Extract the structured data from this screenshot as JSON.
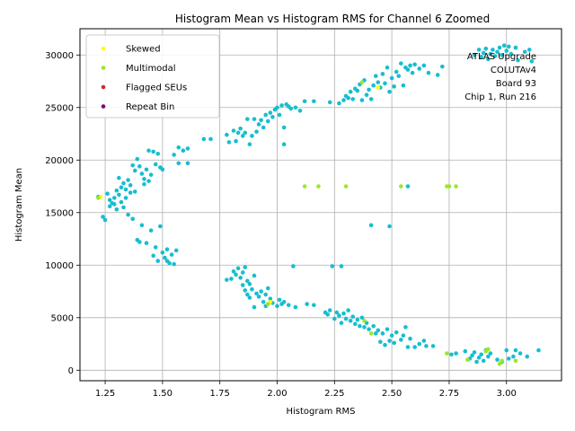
{
  "chart_data": {
    "type": "scatter",
    "title": "Histogram Mean vs Histogram RMS for Channel 6 Zoomed",
    "xlabel": "Histogram RMS",
    "ylabel": "Histogram Mean",
    "xlim": [
      1.14,
      3.24
    ],
    "ylim": [
      -1000,
      32500
    ],
    "xticks": [
      1.25,
      1.5,
      1.75,
      2.0,
      2.25,
      2.5,
      2.75,
      3.0
    ],
    "xtick_labels": [
      "1.25",
      "1.50",
      "1.75",
      "2.00",
      "2.25",
      "2.50",
      "2.75",
      "3.00"
    ],
    "yticks": [
      0,
      5000,
      10000,
      15000,
      20000,
      25000,
      30000
    ],
    "ytick_labels": [
      "0",
      "5000",
      "10000",
      "15000",
      "20000",
      "25000",
      "30000"
    ],
    "grid": true,
    "legend_position": "top-left",
    "annotation": [
      "ATLAS Upgrade",
      "COLUTAv4",
      "Board 93",
      "Chip 1, Run 216"
    ],
    "base_color": "#17becf",
    "base_points": [
      [
        1.22,
        16500
      ],
      [
        1.24,
        14600
      ],
      [
        1.25,
        14300
      ],
      [
        1.26,
        16800
      ],
      [
        1.27,
        16200
      ],
      [
        1.27,
        15600
      ],
      [
        1.28,
        15900
      ],
      [
        1.29,
        16400
      ],
      [
        1.29,
        15800
      ],
      [
        1.3,
        17100
      ],
      [
        1.3,
        15300
      ],
      [
        1.31,
        16700
      ],
      [
        1.31,
        18300
      ],
      [
        1.32,
        17400
      ],
      [
        1.32,
        16000
      ],
      [
        1.33,
        17800
      ],
      [
        1.33,
        15500
      ],
      [
        1.34,
        17200
      ],
      [
        1.34,
        16400
      ],
      [
        1.35,
        18100
      ],
      [
        1.35,
        14800
      ],
      [
        1.36,
        17600
      ],
      [
        1.36,
        16900
      ],
      [
        1.37,
        19500
      ],
      [
        1.37,
        14400
      ],
      [
        1.38,
        19000
      ],
      [
        1.38,
        17000
      ],
      [
        1.39,
        20100
      ],
      [
        1.39,
        12400
      ],
      [
        1.4,
        19400
      ],
      [
        1.4,
        12200
      ],
      [
        1.41,
        18700
      ],
      [
        1.41,
        13800
      ],
      [
        1.42,
        18200
      ],
      [
        1.42,
        17700
      ],
      [
        1.43,
        19100
      ],
      [
        1.43,
        12100
      ],
      [
        1.44,
        18000
      ],
      [
        1.44,
        20900
      ],
      [
        1.45,
        18600
      ],
      [
        1.45,
        13300
      ],
      [
        1.46,
        20800
      ],
      [
        1.46,
        10900
      ],
      [
        1.47,
        19600
      ],
      [
        1.47,
        11700
      ],
      [
        1.48,
        20600
      ],
      [
        1.48,
        10400
      ],
      [
        1.49,
        19300
      ],
      [
        1.49,
        13700
      ],
      [
        1.5,
        19100
      ],
      [
        1.5,
        11200
      ],
      [
        1.51,
        10700
      ],
      [
        1.52,
        10400
      ],
      [
        1.52,
        11500
      ],
      [
        1.53,
        10200
      ],
      [
        1.54,
        11000
      ],
      [
        1.55,
        10100
      ],
      [
        1.55,
        20500
      ],
      [
        1.56,
        11400
      ],
      [
        1.57,
        21200
      ],
      [
        1.57,
        19700
      ],
      [
        1.59,
        20900
      ],
      [
        1.61,
        21100
      ],
      [
        1.61,
        19700
      ],
      [
        1.68,
        22000
      ],
      [
        1.71,
        22000
      ],
      [
        1.78,
        22400
      ],
      [
        1.79,
        21700
      ],
      [
        1.81,
        22800
      ],
      [
        1.82,
        21800
      ],
      [
        1.83,
        22600
      ],
      [
        1.84,
        23000
      ],
      [
        1.85,
        22300
      ],
      [
        1.86,
        22600
      ],
      [
        1.87,
        23900
      ],
      [
        1.88,
        21500
      ],
      [
        1.89,
        22300
      ],
      [
        1.9,
        23900
      ],
      [
        1.91,
        22700
      ],
      [
        1.92,
        23400
      ],
      [
        1.93,
        23800
      ],
      [
        1.94,
        23100
      ],
      [
        1.95,
        24300
      ],
      [
        1.96,
        23700
      ],
      [
        1.97,
        24500
      ],
      [
        1.98,
        24100
      ],
      [
        1.99,
        24800
      ],
      [
        2.0,
        25000
      ],
      [
        2.01,
        24300
      ],
      [
        2.02,
        25200
      ],
      [
        2.03,
        21500
      ],
      [
        2.03,
        23100
      ],
      [
        2.04,
        25300
      ],
      [
        2.05,
        25100
      ],
      [
        2.06,
        24900
      ],
      [
        2.08,
        25000
      ],
      [
        2.1,
        24700
      ],
      [
        2.12,
        25600
      ],
      [
        2.16,
        25600
      ],
      [
        2.23,
        25500
      ],
      [
        2.27,
        25400
      ],
      [
        2.29,
        25700
      ],
      [
        2.3,
        26100
      ],
      [
        2.31,
        25900
      ],
      [
        2.32,
        26500
      ],
      [
        2.33,
        25800
      ],
      [
        2.34,
        26800
      ],
      [
        2.35,
        26600
      ],
      [
        2.36,
        27200
      ],
      [
        2.37,
        25700
      ],
      [
        2.38,
        27600
      ],
      [
        2.39,
        26200
      ],
      [
        2.4,
        26700
      ],
      [
        2.41,
        25800
      ],
      [
        2.42,
        27100
      ],
      [
        2.43,
        28000
      ],
      [
        2.44,
        27400
      ],
      [
        2.45,
        26900
      ],
      [
        2.46,
        28200
      ],
      [
        2.47,
        27300
      ],
      [
        2.48,
        28800
      ],
      [
        2.49,
        26500
      ],
      [
        2.5,
        27800
      ],
      [
        2.51,
        27000
      ],
      [
        2.52,
        28400
      ],
      [
        2.53,
        28000
      ],
      [
        2.54,
        29200
      ],
      [
        2.55,
        27100
      ],
      [
        2.56,
        28800
      ],
      [
        2.57,
        28600
      ],
      [
        2.58,
        29000
      ],
      [
        2.59,
        28300
      ],
      [
        2.6,
        29100
      ],
      [
        2.62,
        28700
      ],
      [
        2.64,
        29000
      ],
      [
        2.66,
        28300
      ],
      [
        2.7,
        28100
      ],
      [
        2.72,
        28900
      ],
      [
        2.86,
        30000
      ],
      [
        2.88,
        30500
      ],
      [
        2.89,
        29800
      ],
      [
        2.9,
        30200
      ],
      [
        2.91,
        30600
      ],
      [
        2.92,
        29600
      ],
      [
        2.93,
        30100
      ],
      [
        2.94,
        30500
      ],
      [
        2.95,
        29900
      ],
      [
        2.96,
        30300
      ],
      [
        2.97,
        30700
      ],
      [
        2.98,
        30000
      ],
      [
        2.99,
        30900
      ],
      [
        3.0,
        30400
      ],
      [
        3.01,
        30800
      ],
      [
        3.02,
        30100
      ],
      [
        3.04,
        30700
      ],
      [
        3.05,
        29500
      ],
      [
        3.08,
        30300
      ],
      [
        3.1,
        30500
      ],
      [
        3.11,
        29400
      ],
      [
        1.78,
        8600
      ],
      [
        1.8,
        8700
      ],
      [
        1.81,
        9400
      ],
      [
        1.82,
        9100
      ],
      [
        1.83,
        9700
      ],
      [
        1.84,
        8800
      ],
      [
        1.85,
        9300
      ],
      [
        1.85,
        8100
      ],
      [
        1.86,
        9800
      ],
      [
        1.86,
        7600
      ],
      [
        1.87,
        8500
      ],
      [
        1.87,
        7200
      ],
      [
        1.88,
        8200
      ],
      [
        1.88,
        6900
      ],
      [
        1.89,
        7700
      ],
      [
        1.9,
        6000
      ],
      [
        1.9,
        9000
      ],
      [
        1.91,
        7300
      ],
      [
        1.92,
        7000
      ],
      [
        1.93,
        7500
      ],
      [
        1.94,
        6500
      ],
      [
        1.95,
        7200
      ],
      [
        1.95,
        6100
      ],
      [
        1.96,
        7800
      ],
      [
        1.97,
        6800
      ],
      [
        1.98,
        6400
      ],
      [
        2.0,
        6100
      ],
      [
        2.01,
        6700
      ],
      [
        2.02,
        6300
      ],
      [
        2.03,
        6500
      ],
      [
        2.05,
        6200
      ],
      [
        2.07,
        9900
      ],
      [
        2.08,
        6000
      ],
      [
        2.13,
        6300
      ],
      [
        2.16,
        6200
      ],
      [
        2.21,
        5500
      ],
      [
        2.22,
        5300
      ],
      [
        2.23,
        5700
      ],
      [
        2.24,
        9900
      ],
      [
        2.25,
        4900
      ],
      [
        2.26,
        5500
      ],
      [
        2.27,
        5200
      ],
      [
        2.28,
        9900
      ],
      [
        2.28,
        4500
      ],
      [
        2.29,
        5400
      ],
      [
        2.3,
        4900
      ],
      [
        2.31,
        5700
      ],
      [
        2.32,
        4700
      ],
      [
        2.33,
        5100
      ],
      [
        2.34,
        4400
      ],
      [
        2.35,
        4800
      ],
      [
        2.36,
        4200
      ],
      [
        2.37,
        5000
      ],
      [
        2.38,
        4100
      ],
      [
        2.39,
        4500
      ],
      [
        2.4,
        3900
      ],
      [
        2.41,
        13800
      ],
      [
        2.42,
        4200
      ],
      [
        2.43,
        3500
      ],
      [
        2.44,
        3800
      ],
      [
        2.45,
        2700
      ],
      [
        2.46,
        3500
      ],
      [
        2.47,
        2400
      ],
      [
        2.48,
        3900
      ],
      [
        2.49,
        2800
      ],
      [
        2.49,
        13700
      ],
      [
        2.5,
        3300
      ],
      [
        2.51,
        2600
      ],
      [
        2.52,
        3600
      ],
      [
        2.54,
        2900
      ],
      [
        2.55,
        3300
      ],
      [
        2.56,
        4100
      ],
      [
        2.57,
        2200
      ],
      [
        2.58,
        3000
      ],
      [
        2.6,
        2200
      ],
      [
        2.62,
        2500
      ],
      [
        2.64,
        2800
      ],
      [
        2.65,
        2300
      ],
      [
        2.68,
        2300
      ],
      [
        2.76,
        1500
      ],
      [
        2.78,
        1600
      ],
      [
        2.82,
        1800
      ],
      [
        2.84,
        1100
      ],
      [
        2.85,
        1400
      ],
      [
        2.86,
        1700
      ],
      [
        2.87,
        800
      ],
      [
        2.88,
        1200
      ],
      [
        2.89,
        1500
      ],
      [
        2.9,
        900
      ],
      [
        2.91,
        1900
      ],
      [
        2.92,
        1300
      ],
      [
        2.93,
        1600
      ],
      [
        2.96,
        1000
      ],
      [
        2.98,
        800
      ],
      [
        3.0,
        1900
      ],
      [
        3.01,
        1100
      ],
      [
        3.03,
        1300
      ],
      [
        3.04,
        1900
      ],
      [
        3.06,
        1600
      ],
      [
        3.09,
        1300
      ],
      [
        3.14,
        1900
      ],
      [
        2.57,
        17500
      ]
    ],
    "series": [
      {
        "name": "Skewed",
        "color": "#ffff00",
        "points": [
          [
            1.23,
            16500
          ],
          [
            1.97,
            6500
          ],
          [
            2.44,
            26900
          ]
        ]
      },
      {
        "name": "Multimodal",
        "color": "#9be72a",
        "points": [
          [
            1.22,
            16400
          ],
          [
            1.96,
            6300
          ],
          [
            2.12,
            17500
          ],
          [
            2.18,
            17500
          ],
          [
            2.3,
            17500
          ],
          [
            2.37,
            27400
          ],
          [
            2.38,
            4700
          ],
          [
            2.41,
            3500
          ],
          [
            2.54,
            17500
          ],
          [
            2.74,
            1600
          ],
          [
            2.74,
            17500
          ],
          [
            2.75,
            17500
          ],
          [
            2.78,
            17500
          ],
          [
            2.83,
            1000
          ],
          [
            2.91,
            1800
          ],
          [
            2.92,
            2000
          ],
          [
            2.97,
            600
          ],
          [
            2.98,
            900
          ],
          [
            3.04,
            900
          ]
        ]
      },
      {
        "name": "Flagged SEUs",
        "color": "#d62728",
        "points": []
      },
      {
        "name": "Repeat Bin",
        "color": "#800080",
        "points": []
      }
    ]
  }
}
